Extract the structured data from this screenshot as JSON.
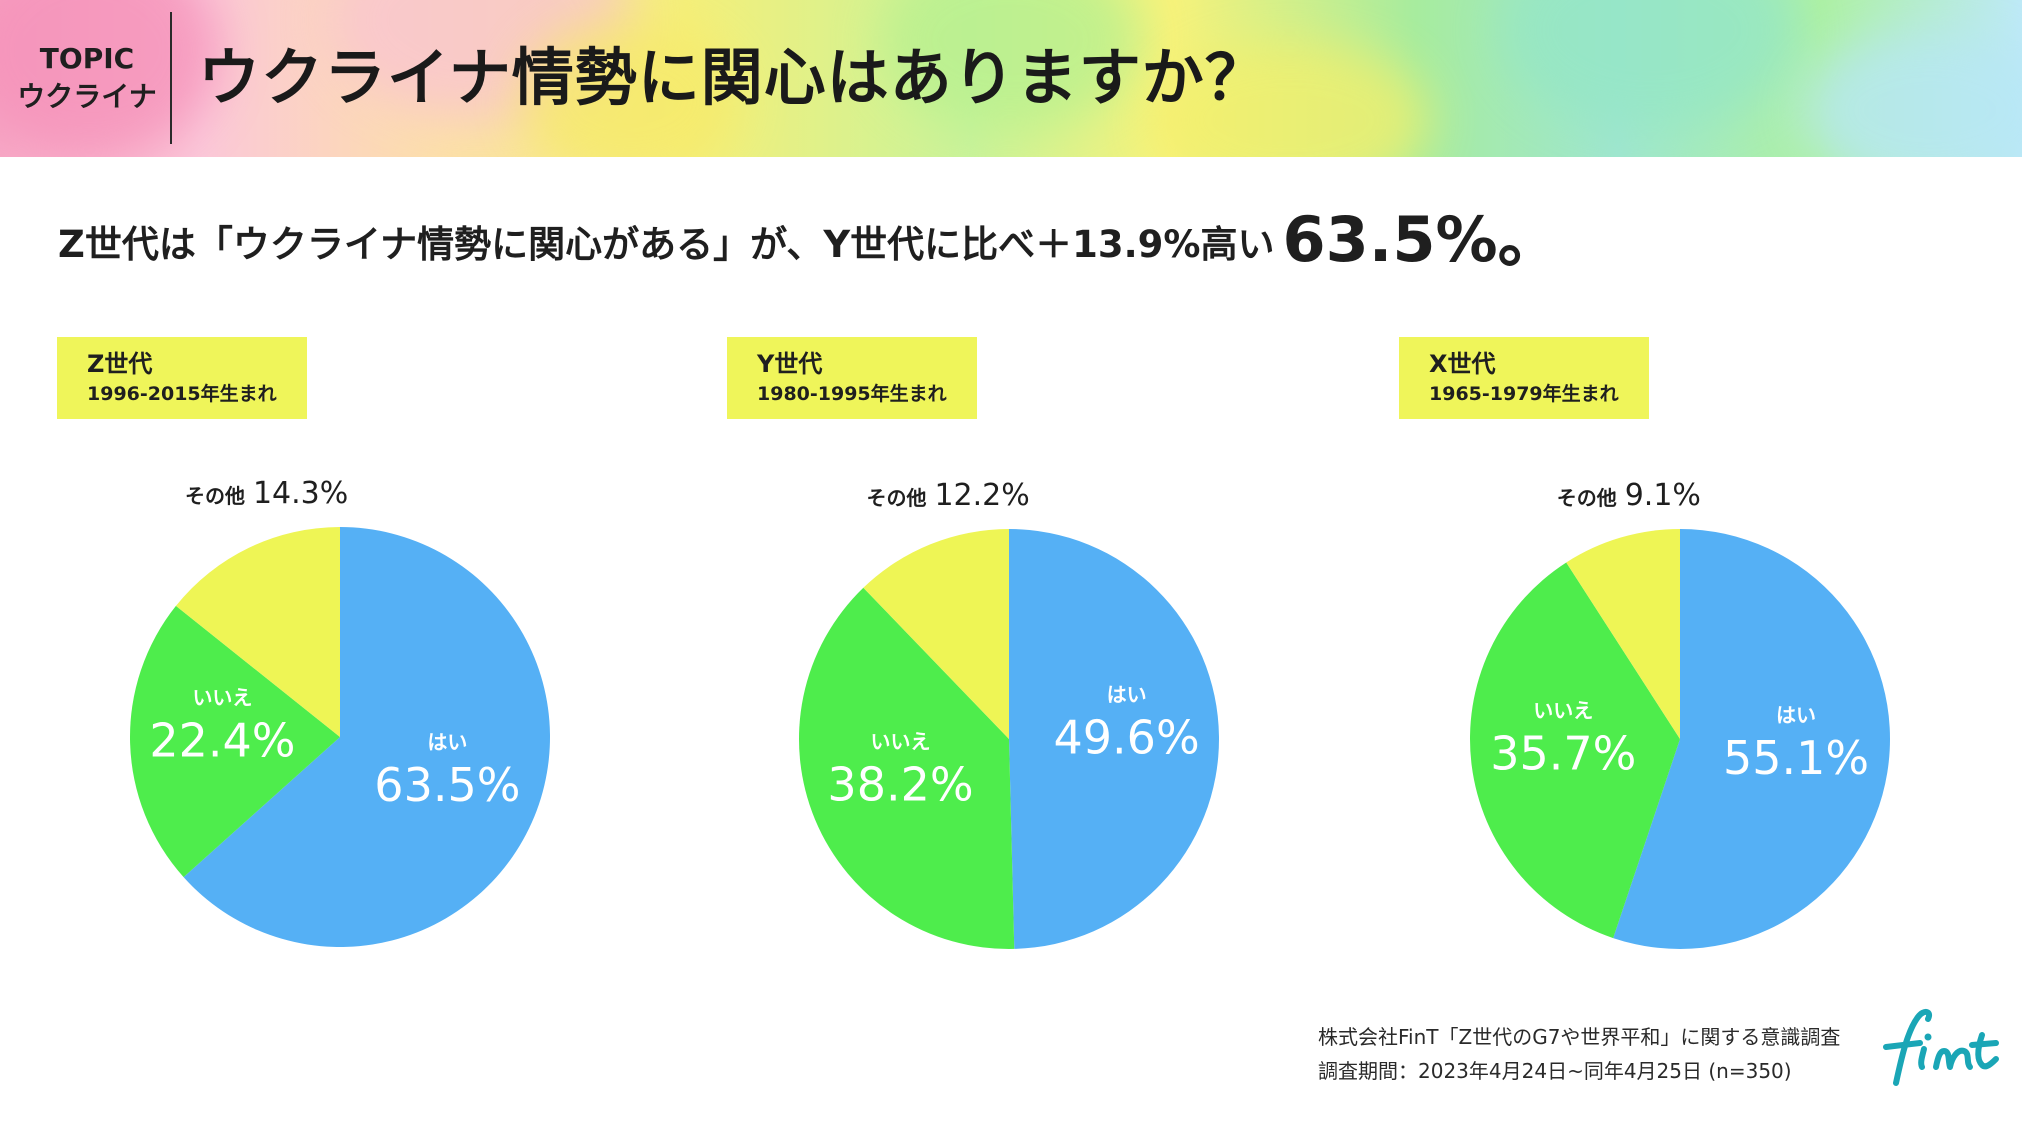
{
  "header": {
    "topic": "TOPIC",
    "topic_sub": "ウクライナ",
    "title": "ウクライナ情勢に関心はありますか？"
  },
  "headline": {
    "text": "Z世代は「ウクライナ情勢に関心がある」が、Y世代に比べ＋13.9%高い",
    "highlight": "63.5%。"
  },
  "colors": {
    "yes": "#55b0f5",
    "no": "#4eed4c",
    "other": "#eef555",
    "box": "#eff55a"
  },
  "chart_data": [
    {
      "type": "pie",
      "generation": "Z世代",
      "years": "1996-2015年生まれ",
      "slices": [
        {
          "label": "はい",
          "value": 63.5,
          "display": "63.5%"
        },
        {
          "label": "いいえ",
          "value": 22.4,
          "display": "22.4%"
        },
        {
          "label": "その他",
          "value": 14.3,
          "display": "14.3%"
        }
      ]
    },
    {
      "type": "pie",
      "generation": "Y世代",
      "years": "1980-1995年生まれ",
      "slices": [
        {
          "label": "はい",
          "value": 49.6,
          "display": "49.6%"
        },
        {
          "label": "いいえ",
          "value": 38.2,
          "display": "38.2%"
        },
        {
          "label": "その他",
          "value": 12.2,
          "display": "12.2%"
        }
      ]
    },
    {
      "type": "pie",
      "generation": "X世代",
      "years": "1965-1979年生まれ",
      "slices": [
        {
          "label": "はい",
          "value": 55.1,
          "display": "55.1%"
        },
        {
          "label": "いいえ",
          "value": 35.7,
          "display": "35.7%"
        },
        {
          "label": "その他",
          "value": 9.1,
          "display": "9.1%"
        }
      ]
    }
  ],
  "footer": {
    "source_line1": "株式会社FinT「Z世代のG7や世界平和」に関する意識調査",
    "source_line2": "調査期間：2023年4月24日~同年4月25日 (n=350)",
    "logo": "fint"
  }
}
